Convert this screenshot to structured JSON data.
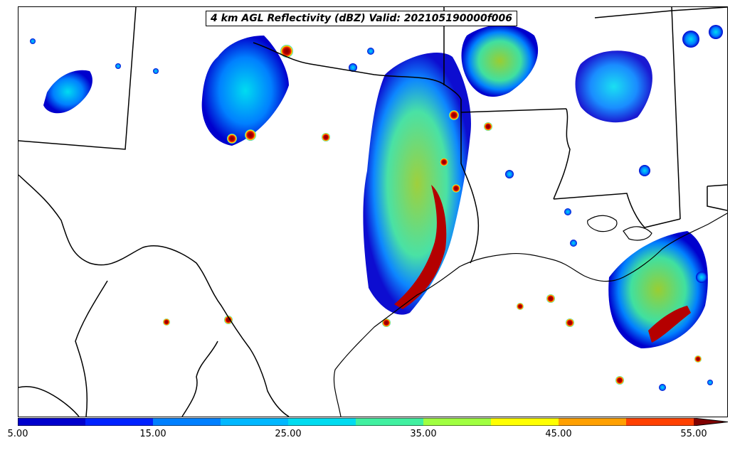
{
  "map": {
    "title": "4 km AGL Reflectivity (dBZ) Valid: 202105190000f006",
    "variable": "4 km AGL Reflectivity",
    "units": "dBZ"
  },
  "colorbar": {
    "levels": [
      5,
      10,
      15,
      20,
      25,
      30,
      35,
      40,
      45,
      50,
      55
    ],
    "colors": [
      "#0000cd",
      "#0022ff",
      "#0080ff",
      "#00b8ff",
      "#00dcf0",
      "#40f0a0",
      "#a0ff40",
      "#ffff00",
      "#ffa000",
      "#ff4000",
      "#b40000",
      "#800000"
    ],
    "extend": "max",
    "tick_labels": [
      "5.00",
      "15.00",
      "25.00",
      "35.00",
      "45.00",
      "55.00"
    ],
    "tick_values": [
      5,
      15,
      25,
      35,
      45,
      55
    ]
  }
}
